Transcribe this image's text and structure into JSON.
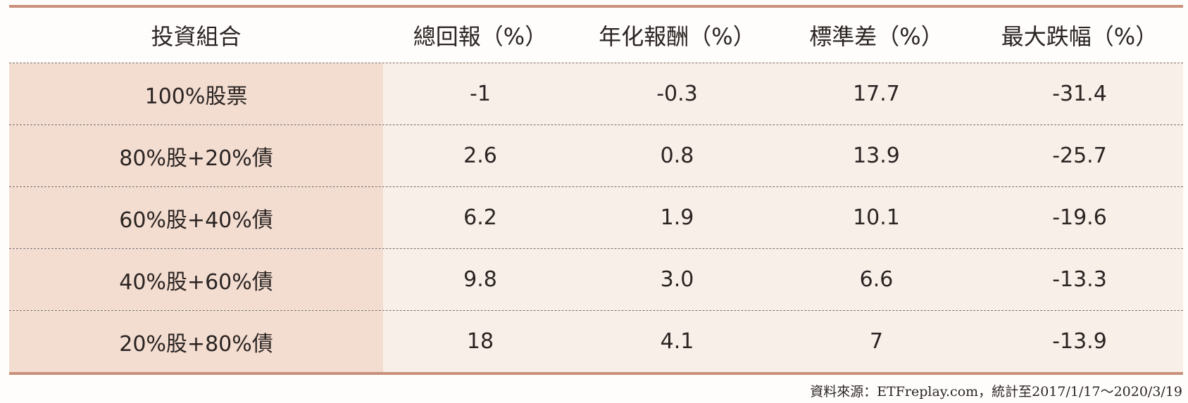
{
  "table": {
    "columns": [
      "投資組合",
      "總回報（%）",
      "年化報酬（%）",
      "標準差（%）",
      "最大跌幅（%）"
    ],
    "rows": [
      [
        "100%股票",
        "-1",
        "-0.3",
        "17.7",
        "-31.4"
      ],
      [
        "80%股+20%債",
        "2.6",
        "0.8",
        "13.9",
        "-25.7"
      ],
      [
        "60%股+40%債",
        "6.2",
        "1.9",
        "10.1",
        "-19.6"
      ],
      [
        "40%股+60%債",
        "9.8",
        "3.0",
        "6.6",
        "-13.3"
      ],
      [
        "20%股+80%債",
        "18",
        "4.1",
        "7",
        "-13.9"
      ]
    ]
  },
  "footer": {
    "source": "資料來源：ETFreplay.com，統計至2017/1/17～2020/3/19"
  }
}
